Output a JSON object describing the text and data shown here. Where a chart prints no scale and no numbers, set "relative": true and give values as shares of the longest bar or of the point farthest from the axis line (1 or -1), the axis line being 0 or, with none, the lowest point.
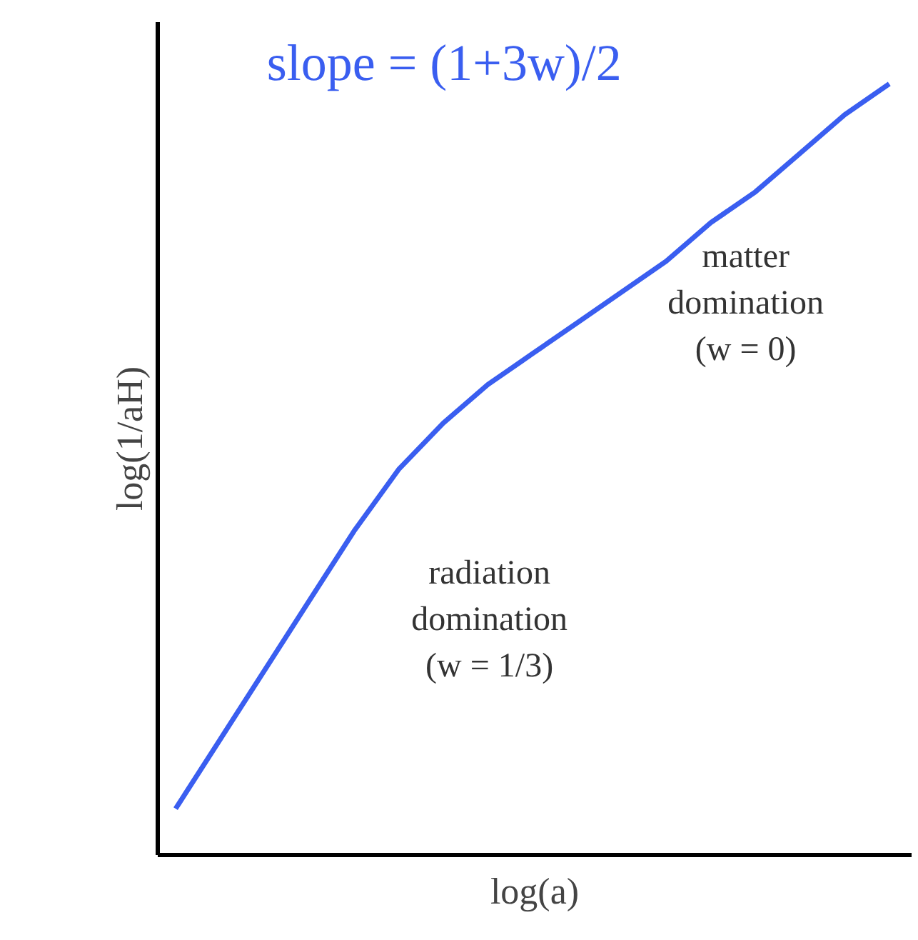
{
  "chart_data": {
    "type": "line",
    "relative": true,
    "xlabel": "log(a)",
    "ylabel": "log(1/aH)",
    "categories": [
      null,
      null,
      null,
      null,
      null,
      null,
      null,
      null,
      null,
      null,
      null,
      null,
      null,
      null,
      null,
      null,
      null
    ],
    "series": [
      {
        "color": "#3a5ef0",
        "values": [
          0.06,
          0.15,
          0.24,
          0.33,
          0.42,
          0.5,
          0.56,
          0.61,
          0.65,
          0.69,
          0.73,
          0.77,
          0.82,
          0.86,
          0.91,
          0.96,
          1.0
        ]
      }
    ],
    "annotations": [
      "slope = (1+3w)/2",
      "matter\ndomination\n(w = 0)",
      "radiation\ndomination\n(w = 1/3)"
    ],
    "grid": false,
    "marker": "none",
    "line_style": "solid"
  }
}
